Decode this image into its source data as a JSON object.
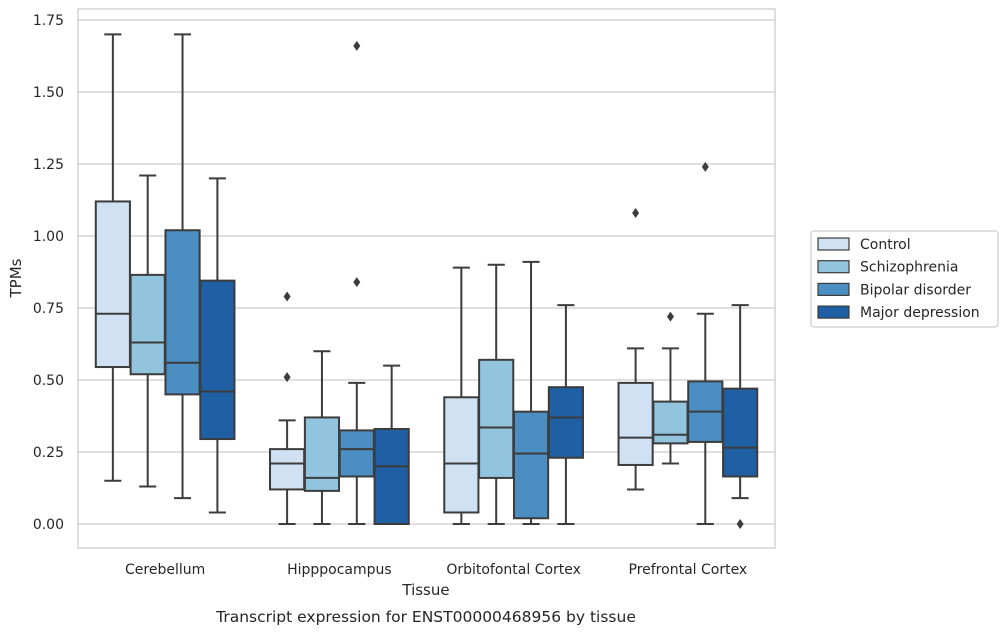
{
  "chart_data": {
    "type": "box",
    "caption": "Transcript expression for ENST00000468956 by tissue",
    "xlabel": "Tissue",
    "ylabel": "TPMs",
    "ylim": [
      -0.08,
      1.78
    ],
    "yticks": [
      "0.00",
      "0.25",
      "0.50",
      "0.75",
      "1.00",
      "1.25",
      "1.50",
      "1.75"
    ],
    "grid": "horizontal",
    "legend_position": "right",
    "categories": [
      "Cerebellum",
      "Hipppocampus",
      "Orbitofontal Cortex",
      "Prefrontal Cortex"
    ],
    "series": [
      {
        "name": "Control",
        "color": "#cfe1f2",
        "boxes": [
          {
            "whislo": 0.15,
            "q1": 0.545,
            "med": 0.73,
            "q3": 1.12,
            "whishi": 1.7,
            "fliers": []
          },
          {
            "whislo": 0.0,
            "q1": 0.12,
            "med": 0.21,
            "q3": 0.26,
            "whishi": 0.36,
            "fliers": [
              0.51,
              0.79
            ]
          },
          {
            "whislo": 0.0,
            "q1": 0.04,
            "med": 0.21,
            "q3": 0.44,
            "whishi": 0.89,
            "fliers": []
          },
          {
            "whislo": 0.12,
            "q1": 0.205,
            "med": 0.3,
            "q3": 0.49,
            "whishi": 0.61,
            "fliers": [
              1.08
            ]
          }
        ]
      },
      {
        "name": "Schizophrenia",
        "color": "#93c4de",
        "boxes": [
          {
            "whislo": 0.13,
            "q1": 0.52,
            "med": 0.63,
            "q3": 0.865,
            "whishi": 1.21,
            "fliers": []
          },
          {
            "whislo": 0.0,
            "q1": 0.115,
            "med": 0.16,
            "q3": 0.37,
            "whishi": 0.6,
            "fliers": []
          },
          {
            "whislo": 0.0,
            "q1": 0.16,
            "med": 0.335,
            "q3": 0.57,
            "whishi": 0.9,
            "fliers": []
          },
          {
            "whislo": 0.21,
            "q1": 0.28,
            "med": 0.31,
            "q3": 0.425,
            "whishi": 0.61,
            "fliers": [
              0.72
            ]
          }
        ]
      },
      {
        "name": "Bipolar disorder",
        "color": "#4b8ec1",
        "boxes": [
          {
            "whislo": 0.09,
            "q1": 0.45,
            "med": 0.56,
            "q3": 1.02,
            "whishi": 1.7,
            "fliers": []
          },
          {
            "whislo": 0.0,
            "q1": 0.165,
            "med": 0.26,
            "q3": 0.325,
            "whishi": 0.49,
            "fliers": [
              0.84,
              1.66
            ]
          },
          {
            "whislo": 0.0,
            "q1": 0.02,
            "med": 0.245,
            "q3": 0.39,
            "whishi": 0.91,
            "fliers": []
          },
          {
            "whislo": 0.0,
            "q1": 0.285,
            "med": 0.39,
            "q3": 0.495,
            "whishi": 0.73,
            "fliers": [
              1.24
            ]
          }
        ]
      },
      {
        "name": "Major depression",
        "color": "#1f5fa3",
        "boxes": [
          {
            "whislo": 0.04,
            "q1": 0.295,
            "med": 0.46,
            "q3": 0.845,
            "whishi": 1.2,
            "fliers": []
          },
          {
            "whislo": 0.0,
            "q1": 0.0,
            "med": 0.2,
            "q3": 0.33,
            "whishi": 0.55,
            "fliers": []
          },
          {
            "whislo": 0.0,
            "q1": 0.23,
            "med": 0.37,
            "q3": 0.475,
            "whishi": 0.76,
            "fliers": []
          },
          {
            "whislo": 0.09,
            "q1": 0.165,
            "med": 0.265,
            "q3": 0.47,
            "whishi": 0.76,
            "fliers": [
              0.0
            ]
          }
        ]
      }
    ]
  }
}
